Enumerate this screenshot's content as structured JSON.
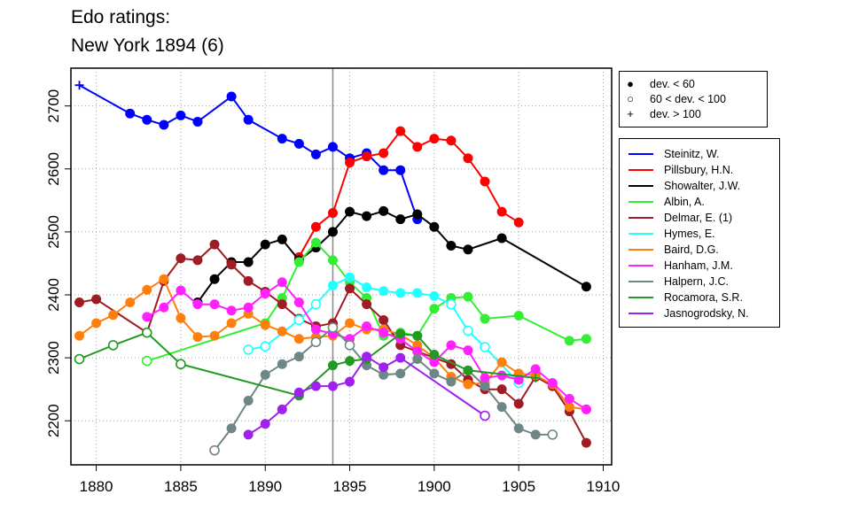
{
  "title": [
    "Edo ratings:",
    "New York 1894 (6)"
  ],
  "chart_data": {
    "type": "line",
    "xlim": [
      1878.5,
      1910.5
    ],
    "ylim": [
      2130,
      2760
    ],
    "x_ticks": [
      1880,
      1885,
      1890,
      1895,
      1900,
      1905,
      1910
    ],
    "y_ticks": [
      2200,
      2300,
      2400,
      2500,
      2600,
      2700
    ],
    "grid": true,
    "event_year": 1894,
    "marker_legend": [
      {
        "symbol": "●",
        "label": "dev. < 60"
      },
      {
        "symbol": "○",
        "label": "60 < dev. < 100"
      },
      {
        "symbol": "+",
        "label": "dev. > 100"
      }
    ],
    "series": [
      {
        "name": "Steinitz, W.",
        "color": "#0000ff",
        "x": [
          1879,
          1882,
          1883,
          1884,
          1885,
          1886,
          1888,
          1889,
          1891,
          1892,
          1893,
          1894,
          1895,
          1896,
          1897,
          1898,
          1899
        ],
        "y": [
          2733,
          2688,
          2678,
          2670,
          2685,
          2675,
          2715,
          2678,
          2648,
          2640,
          2623,
          2635,
          2617,
          2625,
          2598,
          2598,
          2520
        ],
        "m": [
          "p",
          "f",
          "f",
          "f",
          "f",
          "f",
          "f",
          "f",
          "f",
          "f",
          "f",
          "f",
          "f",
          "f",
          "f",
          "f",
          "f"
        ]
      },
      {
        "name": "Pillsbury, H.N.",
        "color": "#ff0000",
        "x": [
          1892,
          1893,
          1894,
          1895,
          1896,
          1897,
          1898,
          1899,
          1900,
          1901,
          1902,
          1903,
          1904,
          1905
        ],
        "y": [
          2460,
          2508,
          2530,
          2610,
          2620,
          2625,
          2660,
          2635,
          2648,
          2645,
          2617,
          2580,
          2532,
          2515
        ],
        "m": [
          "f",
          "f",
          "f",
          "f",
          "f",
          "f",
          "f",
          "f",
          "f",
          "f",
          "f",
          "f",
          "f",
          "f"
        ]
      },
      {
        "name": "Showalter, J.W.",
        "color": "#000000",
        "x": [
          1886,
          1887,
          1888,
          1889,
          1890,
          1891,
          1892,
          1893,
          1894,
          1895,
          1896,
          1897,
          1898,
          1899,
          1900,
          1901,
          1902,
          1904,
          1909
        ],
        "y": [
          2388,
          2425,
          2452,
          2452,
          2480,
          2488,
          2455,
          2475,
          2500,
          2532,
          2525,
          2533,
          2520,
          2528,
          2508,
          2478,
          2472,
          2490,
          2413
        ],
        "m": [
          "f",
          "f",
          "f",
          "f",
          "f",
          "f",
          "f",
          "f",
          "f",
          "f",
          "f",
          "f",
          "f",
          "f",
          "f",
          "f",
          "f",
          "f",
          "f"
        ]
      },
      {
        "name": "Albin, A.",
        "color": "#33ee33",
        "x": [
          1883,
          1890,
          1891,
          1892,
          1893,
          1894,
          1895,
          1896,
          1897,
          1898,
          1899,
          1900,
          1901,
          1902,
          1903,
          1905,
          1908,
          1909
        ],
        "y": [
          2295,
          2355,
          2395,
          2452,
          2483,
          2455,
          2420,
          2395,
          2335,
          2340,
          2335,
          2378,
          2395,
          2397,
          2362,
          2367,
          2327,
          2330
        ],
        "m": [
          "o",
          "f",
          "f",
          "f",
          "f",
          "f",
          "f",
          "f",
          "f",
          "f",
          "f",
          "f",
          "f",
          "f",
          "f",
          "f",
          "f",
          "f"
        ]
      },
      {
        "name": "Delmar, E. (1)",
        "color": "#a01c24",
        "x": [
          1879,
          1880,
          1883,
          1884,
          1885,
          1886,
          1887,
          1888,
          1889,
          1890,
          1891,
          1892,
          1893,
          1894,
          1895,
          1896,
          1897,
          1898,
          1899,
          1900,
          1901,
          1902,
          1903,
          1904,
          1905,
          1906,
          1907,
          1908,
          1909
        ],
        "y": [
          2388,
          2393,
          2340,
          2422,
          2458,
          2455,
          2480,
          2448,
          2422,
          2405,
          2385,
          2362,
          2350,
          2355,
          2410,
          2385,
          2360,
          2320,
          2310,
          2300,
          2290,
          2265,
          2250,
          2250,
          2227,
          2270,
          2255,
          2215,
          2165
        ],
        "m": [
          "f",
          "f",
          "f",
          "f",
          "f",
          "f",
          "f",
          "f",
          "f",
          "f",
          "f",
          "f",
          "f",
          "f",
          "f",
          "f",
          "f",
          "f",
          "f",
          "f",
          "f",
          "f",
          "f",
          "f",
          "f",
          "f",
          "f",
          "f",
          "f"
        ]
      },
      {
        "name": "Hymes, E.",
        "color": "#22ffff",
        "x": [
          1889,
          1890,
          1892,
          1893,
          1894,
          1895,
          1896,
          1897,
          1898,
          1899,
          1900,
          1901,
          1902,
          1903,
          1905
        ],
        "y": [
          2313,
          2318,
          2360,
          2385,
          2415,
          2428,
          2412,
          2406,
          2403,
          2403,
          2398,
          2385,
          2343,
          2317,
          2260
        ],
        "m": [
          "o",
          "o",
          "o",
          "o",
          "f",
          "f",
          "f",
          "f",
          "f",
          "f",
          "f",
          "o",
          "o",
          "o",
          "o"
        ]
      },
      {
        "name": "Baird, D.G.",
        "color": "#ff7f0e",
        "x": [
          1879,
          1880,
          1881,
          1882,
          1883,
          1884,
          1885,
          1886,
          1887,
          1888,
          1889,
          1890,
          1891,
          1892,
          1893,
          1894,
          1895,
          1896,
          1897,
          1898,
          1899,
          1900,
          1901,
          1902,
          1903,
          1904,
          1905,
          1906,
          1907,
          1908,
          1909
        ],
        "y": [
          2335,
          2355,
          2368,
          2388,
          2408,
          2425,
          2363,
          2333,
          2335,
          2355,
          2370,
          2352,
          2342,
          2330,
          2333,
          2335,
          2355,
          2345,
          2345,
          2337,
          2320,
          2300,
          2270,
          2258,
          2260,
          2293,
          2275,
          2272,
          2258,
          2222,
          2218
        ],
        "m": [
          "f",
          "f",
          "f",
          "f",
          "f",
          "f",
          "f",
          "f",
          "f",
          "f",
          "f",
          "f",
          "f",
          "f",
          "f",
          "f",
          "f",
          "f",
          "f",
          "f",
          "f",
          "f",
          "f",
          "f",
          "f",
          "f",
          "f",
          "f",
          "f",
          "f",
          "f"
        ]
      },
      {
        "name": "Hanham, J.M.",
        "color": "#ff22ff",
        "x": [
          1883,
          1884,
          1885,
          1886,
          1887,
          1888,
          1889,
          1890,
          1891,
          1892,
          1893,
          1894,
          1895,
          1896,
          1897,
          1898,
          1899,
          1900,
          1901,
          1902,
          1903,
          1904,
          1905,
          1906,
          1907,
          1908,
          1909
        ],
        "y": [
          2365,
          2380,
          2407,
          2385,
          2385,
          2375,
          2380,
          2402,
          2420,
          2388,
          2345,
          2338,
          2330,
          2350,
          2340,
          2330,
          2310,
          2293,
          2320,
          2312,
          2268,
          2272,
          2265,
          2282,
          2260,
          2235,
          2218
        ],
        "m": [
          "f",
          "f",
          "f",
          "f",
          "f",
          "f",
          "f",
          "f",
          "f",
          "f",
          "f",
          "f",
          "f",
          "f",
          "f",
          "f",
          "f",
          "f",
          "f",
          "f",
          "f",
          "f",
          "f",
          "f",
          "f",
          "f",
          "f"
        ]
      },
      {
        "name": "Halpern, J.C.",
        "color": "#6e8686",
        "x": [
          1887,
          1888,
          1889,
          1890,
          1891,
          1892,
          1893,
          1894,
          1895,
          1896,
          1897,
          1898,
          1899,
          1900,
          1901,
          1902,
          1903,
          1904,
          1905,
          1906,
          1907
        ],
        "y": [
          2153,
          2188,
          2232,
          2273,
          2290,
          2302,
          2325,
          2348,
          2320,
          2288,
          2273,
          2275,
          2298,
          2275,
          2262,
          2280,
          2255,
          2222,
          2188,
          2178,
          2178
        ],
        "m": [
          "o",
          "f",
          "f",
          "f",
          "f",
          "f",
          "o",
          "o",
          "o",
          "f",
          "f",
          "f",
          "f",
          "f",
          "f",
          "f",
          "f",
          "f",
          "f",
          "f",
          "o"
        ]
      },
      {
        "name": "Rocamora, S.R.",
        "color": "#229922",
        "x": [
          1879,
          1881,
          1883,
          1885,
          1892,
          1894,
          1895,
          1896,
          1898,
          1899,
          1900,
          1902,
          1906
        ],
        "y": [
          2298,
          2320,
          2340,
          2290,
          2240,
          2288,
          2295,
          2298,
          2338,
          2335,
          2305,
          2280,
          2268
        ],
        "m": [
          "o",
          "o",
          "o",
          "o",
          "f",
          "f",
          "f",
          "f",
          "f",
          "f",
          "f",
          "f",
          "p"
        ]
      },
      {
        "name": "Jasnogrodsky, N.",
        "color": "#a020f0",
        "x": [
          1889,
          1890,
          1891,
          1892,
          1893,
          1894,
          1895,
          1896,
          1897,
          1898,
          1903
        ],
        "y": [
          2178,
          2195,
          2218,
          2245,
          2255,
          2255,
          2262,
          2302,
          2285,
          2300,
          2208
        ],
        "m": [
          "f",
          "f",
          "f",
          "f",
          "f",
          "f",
          "f",
          "f",
          "f",
          "f",
          "o"
        ]
      }
    ]
  }
}
